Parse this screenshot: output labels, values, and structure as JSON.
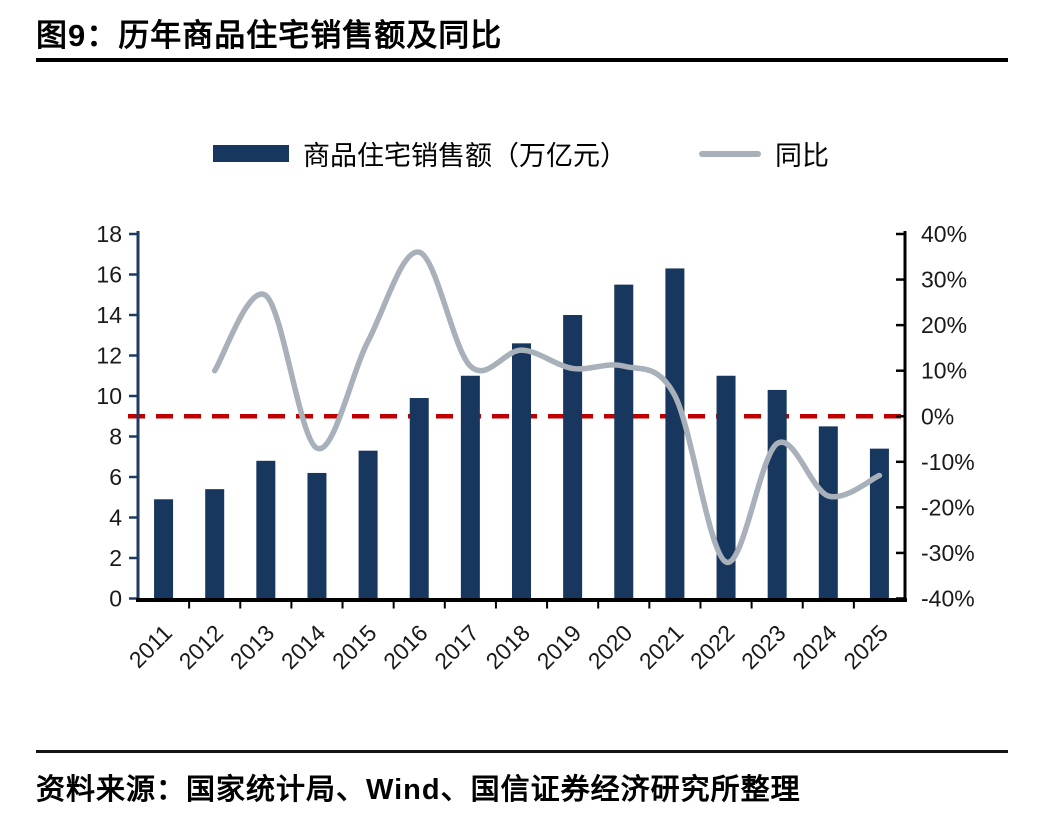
{
  "figure": {
    "number_title": "图9：历年商品住宅销售额及同比",
    "source": "资料来源：国家统计局、Wind、国信证券经济研究所整理"
  },
  "chart_data": {
    "type": "bar+line combo",
    "categories": [
      "2011",
      "2012",
      "2013",
      "2014",
      "2015",
      "2016",
      "2017",
      "2018",
      "2019",
      "2020",
      "2021",
      "2022",
      "2023",
      "2024",
      "2025"
    ],
    "series": [
      {
        "name": "商品住宅销售额（万亿元）",
        "type": "bar",
        "axis": "left",
        "color": "#17375E",
        "values": [
          4.9,
          5.4,
          6.8,
          6.2,
          7.3,
          9.9,
          11.0,
          12.6,
          14.0,
          15.5,
          16.3,
          11.0,
          10.3,
          8.5,
          7.4
        ]
      },
      {
        "name": "同比",
        "type": "line",
        "axis": "right",
        "color": "#A8B0BA",
        "values": [
          null,
          10,
          26.5,
          -7,
          16.5,
          36,
          11,
          14.5,
          10.5,
          11,
          4.5,
          -32,
          -6,
          -17.5,
          -13
        ]
      }
    ],
    "left_axis": {
      "min": 0,
      "max": 18,
      "step": 2,
      "ticks": [
        "18",
        "16",
        "14",
        "12",
        "10",
        "8",
        "6",
        "4",
        "2",
        "0"
      ],
      "color": "#1F3A63"
    },
    "right_axis": {
      "min": -40,
      "max": 40,
      "step": 10,
      "ticks": [
        "40%",
        "30%",
        "20%",
        "10%",
        "0%",
        "-10%",
        "-20%",
        "-30%",
        "-40%"
      ],
      "color": "#000000"
    },
    "zero_line": {
      "value": 0,
      "color": "#C00000",
      "style": "dashed"
    },
    "grid": "off",
    "legend_position": "top",
    "x_label_rotation": -45,
    "tick_label_color": "#1a1a1a"
  }
}
